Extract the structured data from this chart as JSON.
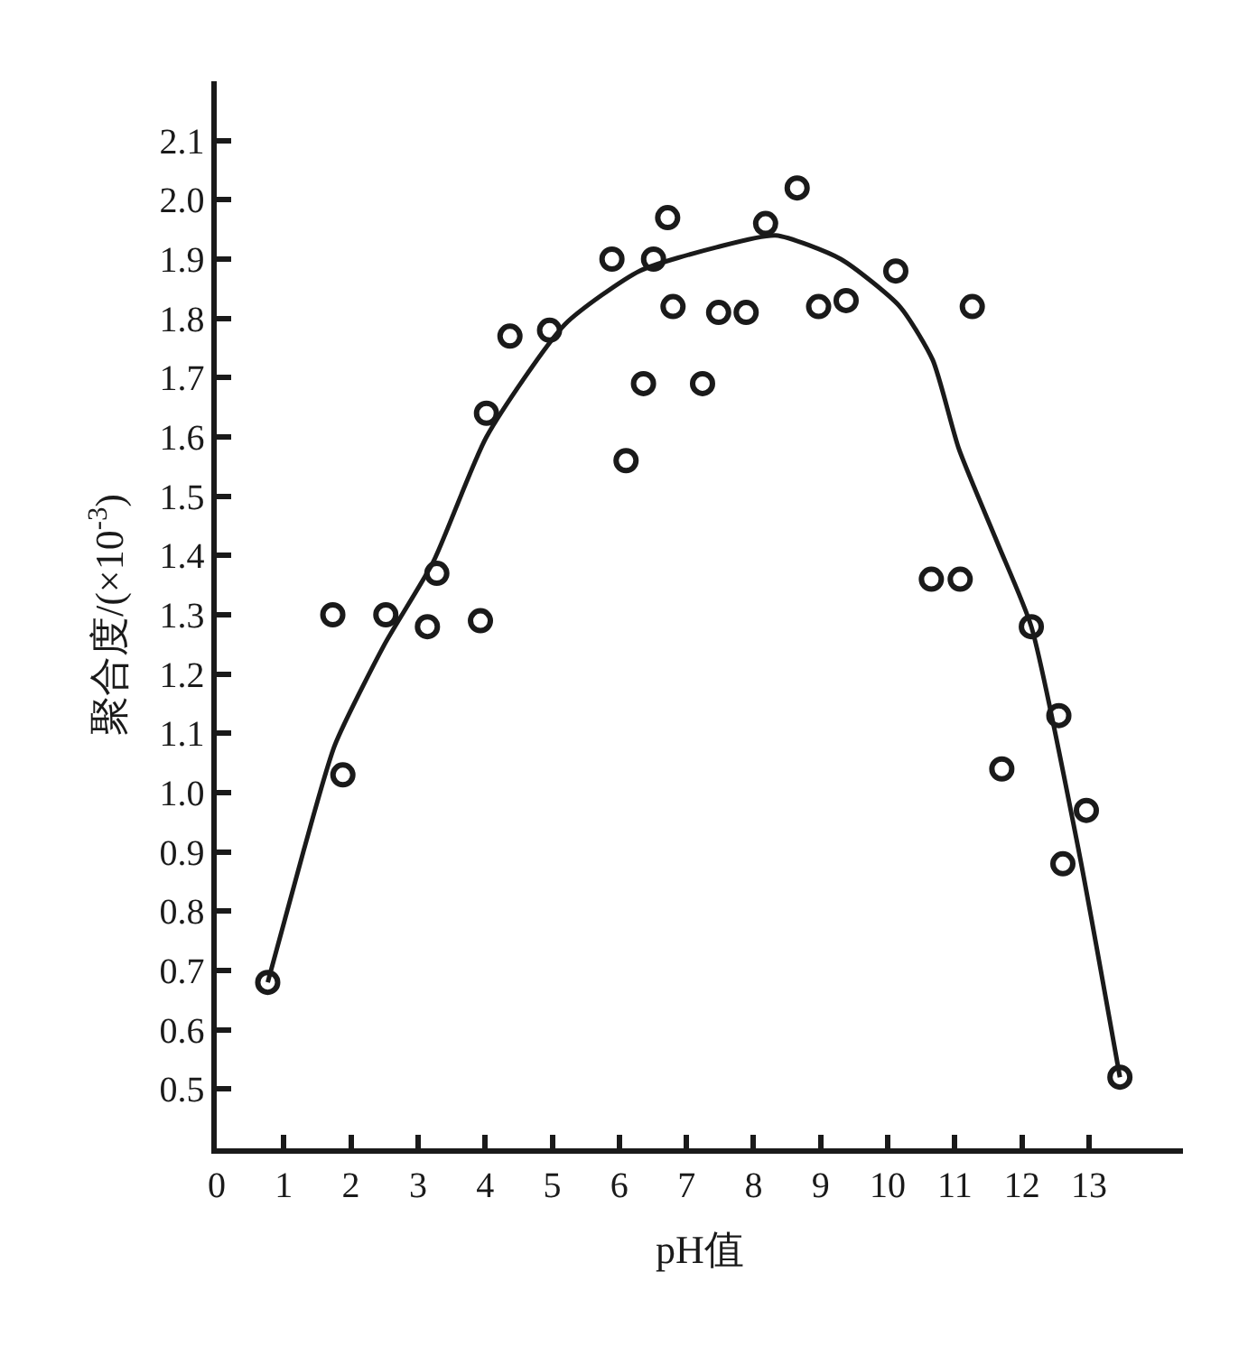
{
  "chart_data": {
    "type": "scatter",
    "xlabel": "pH值",
    "ylabel": "聚合度/(×10$^{-3}$)",
    "xlim": [
      0,
      14.4
    ],
    "xticks": [
      0,
      1,
      2,
      3,
      4,
      5,
      6,
      7,
      8,
      9,
      10,
      11,
      12,
      13
    ],
    "ylim": [
      0.4,
      2.2
    ],
    "yticks": [
      0.5,
      0.6,
      0.7,
      0.8,
      0.9,
      {
        "value": 1,
        "label": "1.0"
      },
      1.1,
      1.2,
      1.3,
      1.4,
      1.5,
      1.6,
      1.7,
      1.8,
      1.9,
      {
        "value": 2,
        "label": "2.0"
      },
      2.1
    ],
    "series": [
      {
        "marker": "circle",
        "color": "#1a1a1a",
        "x": [
          0.76,
          1.73,
          1.88,
          2.52,
          3.14,
          3.28,
          3.93,
          4.02,
          4.37,
          4.96,
          5.89,
          6.1,
          6.36,
          6.51,
          6.72,
          6.8,
          7.24,
          7.48,
          7.89,
          8.18,
          8.65,
          8.97,
          9.38,
          10.12,
          10.65,
          11.08,
          11.26,
          11.7,
          12.14,
          12.55,
          12.61,
          12.96,
          13.46
        ],
        "values": [
          0.68,
          1.3,
          1.03,
          1.3,
          1.28,
          1.37,
          1.29,
          1.64,
          1.77,
          1.78,
          1.9,
          1.56,
          1.69,
          1.9,
          1.97,
          1.82,
          1.69,
          1.81,
          1.81,
          1.96,
          2.02,
          1.82,
          1.83,
          1.88,
          1.36,
          1.36,
          1.82,
          1.04,
          1.28,
          1.13,
          0.88,
          0.97,
          0.52
        ]
      },
      {
        "type": "line",
        "marker": "none",
        "line_style": "solid",
        "color": "#1a1a1a",
        "x": [
          0.76,
          1.29,
          1.76,
          2.5,
          3.23,
          4.02,
          5.19,
          6.3,
          7.45,
          8.33,
          9.3,
          10.18,
          10.67,
          11.06,
          11.64,
          12.14,
          12.85,
          13.46
        ],
        "values": [
          0.68,
          0.9,
          1.08,
          1.25,
          1.39,
          1.6,
          1.79,
          1.88,
          1.92,
          1.94,
          1.9,
          1.82,
          1.73,
          1.58,
          1.42,
          1.28,
          0.9,
          0.52
        ]
      }
    ]
  }
}
